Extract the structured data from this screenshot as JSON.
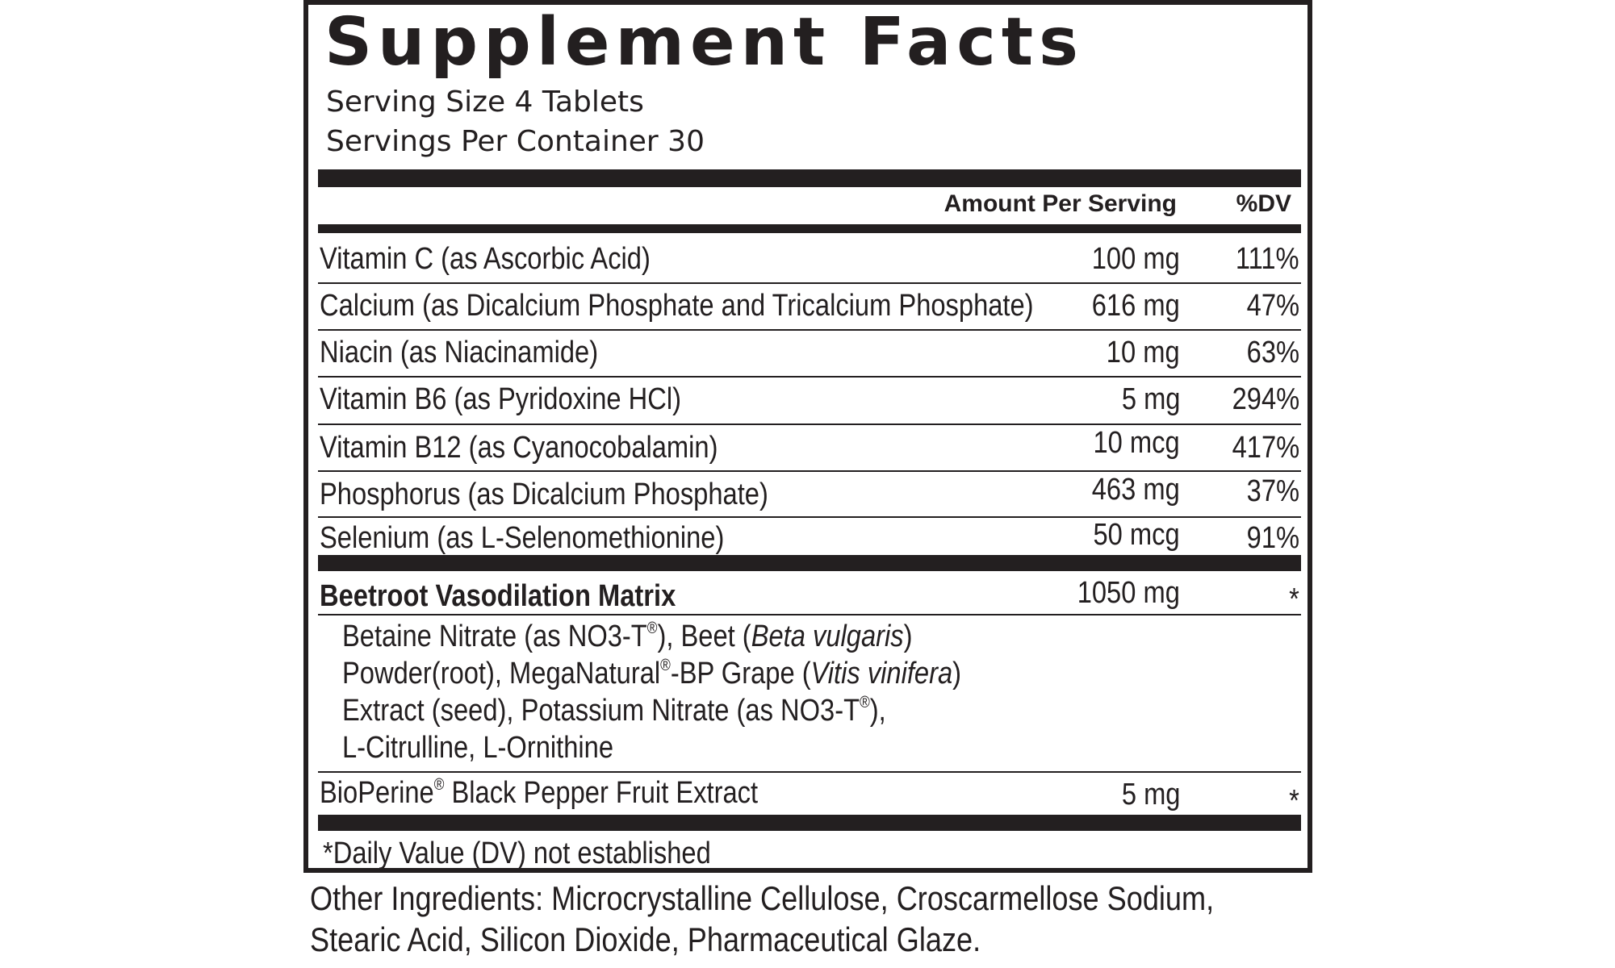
{
  "panel": {
    "title": "Supplement Facts",
    "serving_size": "Serving Size 4 Tablets",
    "servings_per_container": "Servings Per Container 30",
    "column_amount": "Amount Per Serving",
    "column_dv": "%DV"
  },
  "nutrients": [
    {
      "name": "Vitamin C (as Ascorbic Acid)",
      "amount": "100 mg",
      "dv": "111%"
    },
    {
      "name": "Calcium (as Dicalcium Phosphate and Tricalcium Phosphate)",
      "amount": "616 mg",
      "dv": "47%"
    },
    {
      "name": "Niacin (as Niacinamide)",
      "amount": "10 mg",
      "dv": "63%"
    },
    {
      "name": "Vitamin B6 (as Pyridoxine HCl)",
      "amount": "5 mg",
      "dv": "294%"
    },
    {
      "name": "Vitamin B12 (as Cyanocobalamin)",
      "amount": "10 mcg",
      "dv": "417%"
    },
    {
      "name": "Phosphorus (as Dicalcium Phosphate)",
      "amount": "463 mg",
      "dv": "37%"
    },
    {
      "name": "Selenium (as L-Selenomethionine)",
      "amount": "50 mcg",
      "dv": "91%"
    }
  ],
  "matrix": {
    "name": "Beetroot Vasodilation Matrix",
    "amount": "1050 mg",
    "dv": "*",
    "ingredients": {
      "l1_a": "Betaine Nitrate (as NO3-T",
      "reg": "®",
      "l1_b": "), Beet (",
      "l1_italic": "Beta vulgaris",
      "l1_c": ")",
      "l2_a": "Powder(root), MegaNatural",
      "l2_b": "-BP Grape (",
      "l2_italic": "Vitis vinifera",
      "l2_c": ")",
      "l3_a": "Extract (seed), Potassium Nitrate (as NO3-T",
      "l3_b": "),",
      "l4": "L-Citrulline, L-Ornithine"
    }
  },
  "bioperine": {
    "name_a": "BioPerine",
    "reg": "®",
    "name_b": " Black Pepper Fruit Extract",
    "amount": "5 mg",
    "dv": "*"
  },
  "footnote": "*Daily Value (DV) not established",
  "other_ingredients": {
    "line1": "Other Ingredients: Microcrystalline Cellulose, Croscarmellose Sodium,",
    "line2": "Stearic Acid, Silicon Dioxide, Pharmaceutical Glaze."
  }
}
